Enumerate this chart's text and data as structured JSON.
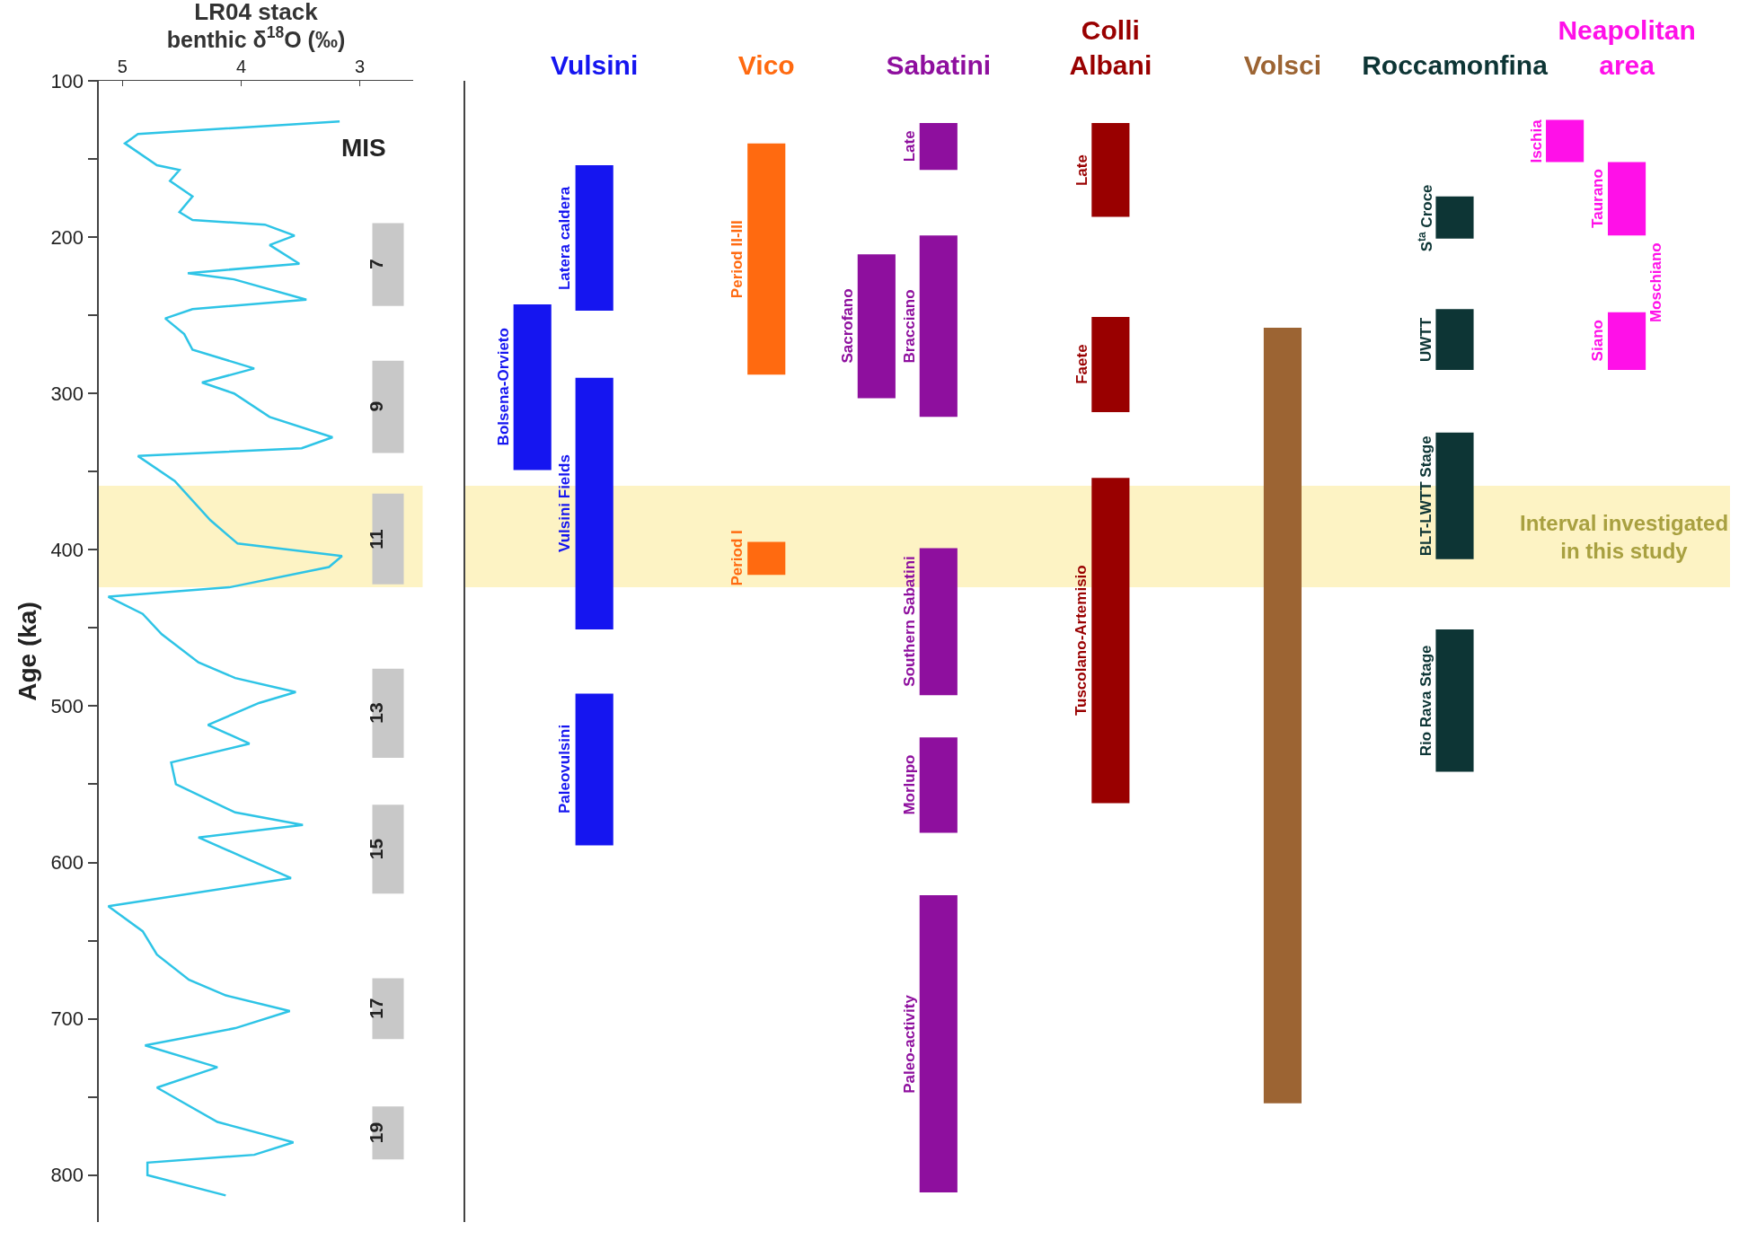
{
  "chart_data": [
    {
      "type": "line",
      "title": "LR04 stack",
      "xlabel": "benthic δ$^{18}$O (‰)",
      "ylabel": "Age (ka)",
      "xlim": [
        5.2,
        2.55
      ],
      "xticks": [
        5,
        4,
        3
      ],
      "ylim": [
        830,
        100
      ],
      "yticks": [
        100,
        {
          "value": 150,
          "label": null
        },
        200,
        {
          "value": 250,
          "label": null
        },
        300,
        {
          "value": 350,
          "label": null
        },
        400,
        {
          "value": 450,
          "label": null
        },
        500,
        {
          "value": 550,
          "label": null
        },
        600,
        {
          "value": 650,
          "label": null
        },
        700,
        {
          "value": 750,
          "label": null
        },
        800
      ],
      "series": [
        {
          "color": "#2ec4e6",
          "x": [
            3.17,
            4.87,
            4.98,
            4.71,
            4.52,
            4.6,
            4.41,
            4.52,
            4.41,
            3.8,
            3.55,
            3.76,
            3.51,
            4.45,
            4.06,
            3.45,
            4.41,
            4.64,
            4.48,
            4.41,
            3.89,
            4.33,
            4.06,
            3.76,
            3.23,
            3.49,
            4.87,
            4.56,
            4.26,
            4.03,
            3.15,
            3.26,
            4.1,
            5.12,
            4.83,
            4.67,
            4.36,
            4.05,
            3.54,
            3.85,
            4.28,
            3.93,
            4.59,
            4.55,
            4.05,
            3.48,
            4.36,
            3.97,
            3.58,
            5.12,
            4.83,
            4.71,
            4.44,
            4.13,
            3.59,
            4.05,
            4.81,
            4.2,
            4.71,
            4.2,
            3.56,
            3.89,
            4.79,
            4.79,
            4.13
          ],
          "values": [
            126,
            134,
            140,
            154,
            157,
            164,
            174,
            184,
            189,
            192,
            199,
            205,
            217,
            223,
            227,
            240,
            246,
            252,
            262,
            272,
            284,
            293,
            300,
            315,
            328,
            335,
            340,
            356,
            381,
            396,
            404,
            411,
            424,
            430,
            441,
            454,
            472,
            482,
            491,
            498,
            512,
            524,
            536,
            550,
            568,
            576,
            584,
            597,
            610,
            628,
            644,
            659,
            675,
            685,
            695,
            706,
            717,
            731,
            744,
            766,
            779,
            787,
            792,
            800,
            813
          ]
        }
      ],
      "bands": [
        {
          "axis": "y",
          "from": 359,
          "to": 424,
          "color": "#fdf3c4"
        },
        {
          "axis": "y",
          "from": 191,
          "to": 244,
          "label": "7",
          "color": "#c8c8c8"
        },
        {
          "axis": "y",
          "from": 279,
          "to": 338,
          "label": "9",
          "color": "#c8c8c8"
        },
        {
          "axis": "y",
          "from": 364,
          "to": 422,
          "label": "11",
          "color": "#c8c8c8"
        },
        {
          "axis": "y",
          "from": 476,
          "to": 533,
          "label": "13",
          "color": "#c8c8c8"
        },
        {
          "axis": "y",
          "from": 563,
          "to": 620,
          "label": "15",
          "color": "#c8c8c8"
        },
        {
          "axis": "y",
          "from": 674,
          "to": 713,
          "label": "17",
          "color": "#c8c8c8"
        },
        {
          "axis": "y",
          "from": 756,
          "to": 790,
          "label": "19",
          "color": "#c8c8c8"
        }
      ],
      "annotations": [
        "MIS"
      ]
    },
    {
      "type": "bar",
      "categories": [
        "Vulsini",
        "Vico",
        "Sabatini",
        "Colli Albani",
        "Volsci",
        "Roccamonfina",
        "Neapolitan area"
      ],
      "ylim": [
        830,
        100
      ],
      "tick_labels": "x",
      "series": [
        {
          "name": "Latera caldera",
          "color": "#1515f0",
          "values": [
            93,
            null,
            null,
            null,
            null,
            null,
            null
          ],
          "base": [
            154,
            null,
            null,
            null,
            null,
            null,
            null
          ]
        },
        {
          "name": "Vulsini Fields",
          "color": "#1515f0",
          "values": [
            161,
            null,
            null,
            null,
            null,
            null,
            null
          ],
          "base": [
            290,
            null,
            null,
            null,
            null,
            null,
            null
          ]
        },
        {
          "name": "Paleovulsini",
          "color": "#1515f0",
          "values": [
            97,
            null,
            null,
            null,
            null,
            null,
            null
          ],
          "base": [
            492,
            null,
            null,
            null,
            null,
            null,
            null
          ]
        },
        {
          "name": "Bolsena-Orvieto",
          "color": "#1515f0",
          "values": [
            106,
            null,
            null,
            null,
            null,
            null,
            null
          ],
          "base": [
            243,
            null,
            null,
            null,
            null,
            null,
            null
          ]
        },
        {
          "name": "Period II-III",
          "color": "#ff6a10",
          "values": [
            null,
            148,
            null,
            null,
            null,
            null,
            null
          ],
          "base": [
            null,
            140,
            null,
            null,
            null,
            null,
            null
          ]
        },
        {
          "name": "Period I",
          "color": "#ff6a10",
          "values": [
            null,
            21,
            null,
            null,
            null,
            null,
            null
          ],
          "base": [
            null,
            395,
            null,
            null,
            null,
            null,
            null
          ]
        },
        {
          "name": "Bracciano",
          "color": "#8e0f9e",
          "values": [
            null,
            null,
            116,
            null,
            null,
            null,
            null
          ],
          "base": [
            null,
            null,
            199,
            null,
            null,
            null,
            null
          ]
        },
        {
          "name": "Late",
          "color": "#8e0f9e",
          "values": [
            null,
            null,
            30,
            null,
            null,
            null,
            null
          ],
          "base": [
            null,
            null,
            127,
            null,
            null,
            null,
            null
          ]
        },
        {
          "name": "Southern Sabatini",
          "color": "#8e0f9e",
          "values": [
            null,
            null,
            94,
            null,
            null,
            null,
            null
          ],
          "base": [
            null,
            null,
            399,
            null,
            null,
            null,
            null
          ]
        },
        {
          "name": "Morlupo",
          "color": "#8e0f9e",
          "values": [
            null,
            null,
            61,
            null,
            null,
            null,
            null
          ],
          "base": [
            null,
            null,
            520,
            null,
            null,
            null,
            null
          ]
        },
        {
          "name": "Paleo-activity",
          "color": "#8e0f9e",
          "values": [
            null,
            null,
            190,
            null,
            null,
            null,
            null
          ],
          "base": [
            null,
            null,
            621,
            null,
            null,
            null,
            null
          ]
        },
        {
          "name": "Sacrofano",
          "color": "#8e0f9e",
          "values": [
            null,
            null,
            92,
            null,
            null,
            null,
            null
          ],
          "base": [
            null,
            null,
            211,
            null,
            null,
            null,
            null
          ]
        },
        {
          "name": "Late",
          "color": "#990000",
          "values": [
            null,
            null,
            null,
            60,
            null,
            null,
            null
          ],
          "base": [
            null,
            null,
            null,
            127,
            null,
            null,
            null
          ]
        },
        {
          "name": "Faete",
          "color": "#990000",
          "values": [
            null,
            null,
            null,
            61,
            null,
            null,
            null
          ],
          "base": [
            null,
            null,
            null,
            251,
            null,
            null,
            null
          ]
        },
        {
          "name": "Tuscolano-Artemisio",
          "color": "#990000",
          "values": [
            null,
            null,
            null,
            208,
            null,
            null,
            null
          ],
          "base": [
            null,
            null,
            null,
            354,
            null,
            null,
            null
          ]
        },
        {
          "color": "#9c6433",
          "values": [
            null,
            null,
            null,
            null,
            496,
            null,
            null
          ],
          "base": [
            null,
            null,
            null,
            null,
            258,
            null,
            null
          ]
        },
        {
          "name": "S$^{ta}$ Croce",
          "color": "#0d3535",
          "values": [
            null,
            null,
            null,
            null,
            null,
            27,
            null
          ],
          "base": [
            null,
            null,
            null,
            null,
            null,
            174,
            null
          ]
        },
        {
          "name": "UWTT",
          "color": "#0d3535",
          "values": [
            null,
            null,
            null,
            null,
            null,
            39,
            null
          ],
          "base": [
            null,
            null,
            null,
            null,
            null,
            246,
            null
          ]
        },
        {
          "name": "BLT-LWTT Stage",
          "color": "#0d3535",
          "values": [
            null,
            null,
            null,
            null,
            null,
            81,
            null
          ],
          "base": [
            null,
            null,
            null,
            null,
            null,
            325,
            null
          ]
        },
        {
          "name": "Rio Rava Stage",
          "color": "#0d3535",
          "values": [
            null,
            null,
            null,
            null,
            null,
            91,
            null
          ],
          "base": [
            null,
            null,
            null,
            null,
            null,
            451,
            null
          ]
        },
        {
          "name": "Taurano",
          "color": "#ff10e8",
          "values": [
            null,
            null,
            null,
            null,
            null,
            null,
            47
          ],
          "base": [
            null,
            null,
            null,
            null,
            null,
            null,
            152
          ]
        },
        {
          "name": "Siano",
          "color": "#ff10e8",
          "values": [
            null,
            null,
            null,
            null,
            null,
            null,
            37
          ],
          "base": [
            null,
            null,
            null,
            null,
            null,
            null,
            248
          ]
        },
        {
          "name": "Ischia",
          "color": "#ff10e8",
          "values": [
            null,
            null,
            null,
            null,
            null,
            null,
            27
          ],
          "base": [
            null,
            null,
            null,
            null,
            null,
            null,
            125
          ]
        }
      ],
      "bands": [
        {
          "axis": "y",
          "from": 359,
          "to": 424,
          "label": "Interval investigated in this study",
          "color": "#fdf3c4"
        }
      ],
      "annotations": [
        "Moschiano"
      ]
    }
  ]
}
